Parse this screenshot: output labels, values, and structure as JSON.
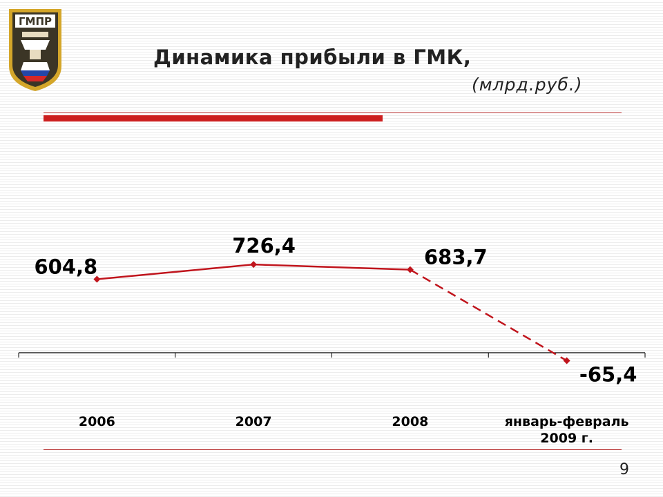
{
  "logo": {
    "text": "ГМПР",
    "colors": {
      "frame": "#d4a62a",
      "field": "#3b3526",
      "red": "#d62828",
      "blue": "#2446a8"
    }
  },
  "page": {
    "number": "9"
  },
  "chart_data": {
    "type": "line",
    "title": "Динамика прибыли  в ГМК,",
    "subtitle": "(млрд.руб.)",
    "xlabel": "",
    "ylabel": "",
    "categories": [
      "2006",
      "2007",
      "2008",
      "январь-февраль 2009 г."
    ],
    "category_lines": [
      [
        "2006"
      ],
      [
        "2007"
      ],
      [
        "2008"
      ],
      [
        "январь-февраль",
        "2009 г."
      ]
    ],
    "values": [
      604.8,
      726.4,
      683.7,
      -65.4
    ],
    "data_labels": [
      "604,8",
      "726,4",
      "683,7",
      "-65,4"
    ],
    "dashed_last_segment": true,
    "ylim": [
      -200,
      1000
    ],
    "grid": false,
    "legend": "none",
    "colors": {
      "series": "#c0141c",
      "axis": "#000000",
      "accent": "#cc1f1f"
    }
  }
}
